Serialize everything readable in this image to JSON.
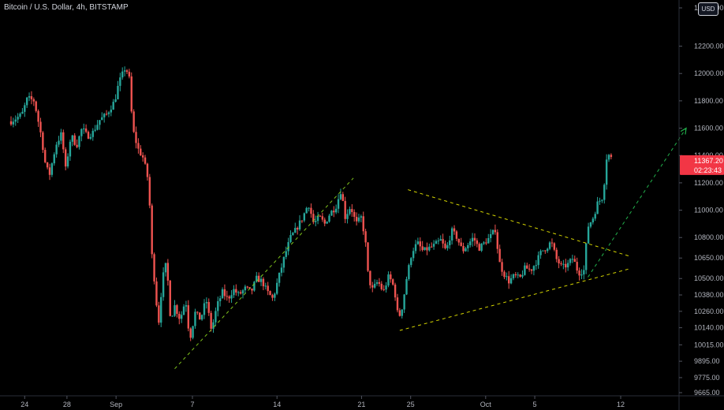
{
  "header": {
    "title": "Bitcoin / U.S. Dollar, 4h, BITSTAMP"
  },
  "currency_button": {
    "label": "USD"
  },
  "price_badge": {
    "price": "11367.20",
    "countdown": "02:23:43",
    "color": "#f23645"
  },
  "colors": {
    "up": "#26a69a",
    "down": "#ef5350",
    "background": "#000000",
    "trendline": "#d4d400",
    "projection": "#22b14c",
    "axis_text": "#b2b5be"
  },
  "chart_data": {
    "type": "candlestick",
    "title": "Bitcoin / U.S. Dollar, 4h, BITSTAMP",
    "ylim": [
      9620,
      12480
    ],
    "x_range": [
      0,
      53
    ],
    "x_ticks": [
      {
        "x": 1.0,
        "label": "24"
      },
      {
        "x": 4.1,
        "label": "28"
      },
      {
        "x": 7.7,
        "label": "Sep"
      },
      {
        "x": 13.3,
        "label": "7"
      },
      {
        "x": 19.5,
        "label": "14"
      },
      {
        "x": 25.7,
        "label": "21"
      },
      {
        "x": 29.3,
        "label": "25"
      },
      {
        "x": 34.8,
        "label": "Oct"
      },
      {
        "x": 38.4,
        "label": "5"
      },
      {
        "x": 44.7,
        "label": "12"
      }
    ],
    "y_ticks": [
      {
        "value": 12480.0,
        "label": "12480.00"
      },
      {
        "value": 12200.0,
        "label": "12200.00"
      },
      {
        "value": 12000.0,
        "label": "12000.00"
      },
      {
        "value": 11800.0,
        "label": "11800.00"
      },
      {
        "value": 11600.0,
        "label": "11600.00"
      },
      {
        "value": 11400.0,
        "label": "11400.00"
      },
      {
        "value": 11200.0,
        "label": "11200.00"
      },
      {
        "value": 11000.0,
        "label": "11000.00"
      },
      {
        "value": 10800.0,
        "label": "10800.00"
      },
      {
        "value": 10650.0,
        "label": "10650.00"
      },
      {
        "value": 10500.0,
        "label": "10500.00"
      },
      {
        "value": 10380.0,
        "label": "10380.00"
      },
      {
        "value": 10260.0,
        "label": "10260.00"
      },
      {
        "value": 10140.0,
        "label": "10140.00"
      },
      {
        "value": 10015.0,
        "label": "10015.00"
      },
      {
        "value": 9895.0,
        "label": "9895.00"
      },
      {
        "value": 9775.0,
        "label": "9775.00"
      },
      {
        "value": 9665.0,
        "label": "9665.00"
      }
    ],
    "anchors": [
      [
        0.0,
        11650
      ],
      [
        0.8,
        11700
      ],
      [
        1.2,
        11820
      ],
      [
        1.7,
        11800
      ],
      [
        2.2,
        11550
      ],
      [
        2.5,
        11350
      ],
      [
        2.8,
        11250
      ],
      [
        3.3,
        11480
      ],
      [
        3.7,
        11560
      ],
      [
        4.0,
        11300
      ],
      [
        4.4,
        11550
      ],
      [
        4.8,
        11470
      ],
      [
        5.2,
        11600
      ],
      [
        5.6,
        11540
      ],
      [
        6.0,
        11570
      ],
      [
        6.5,
        11660
      ],
      [
        7.0,
        11700
      ],
      [
        7.6,
        11800
      ],
      [
        7.9,
        11930
      ],
      [
        8.4,
        12050
      ],
      [
        8.7,
        11950
      ],
      [
        8.9,
        11600
      ],
      [
        9.3,
        11450
      ],
      [
        9.7,
        11380
      ],
      [
        10.1,
        11200
      ],
      [
        10.3,
        10700
      ],
      [
        10.6,
        10400
      ],
      [
        10.8,
        10150
      ],
      [
        11.1,
        10500
      ],
      [
        11.4,
        10620
      ],
      [
        11.7,
        10200
      ],
      [
        12.0,
        10300
      ],
      [
        12.4,
        10200
      ],
      [
        12.8,
        10350
      ],
      [
        13.1,
        10050
      ],
      [
        13.5,
        10250
      ],
      [
        13.9,
        10200
      ],
      [
        14.3,
        10350
      ],
      [
        14.7,
        10120
      ],
      [
        15.1,
        10300
      ],
      [
        15.5,
        10400
      ],
      [
        15.9,
        10350
      ],
      [
        16.3,
        10420
      ],
      [
        16.7,
        10380
      ],
      [
        17.2,
        10430
      ],
      [
        17.6,
        10400
      ],
      [
        18.0,
        10500
      ],
      [
        18.4,
        10480
      ],
      [
        18.8,
        10400
      ],
      [
        19.2,
        10350
      ],
      [
        19.6,
        10500
      ],
      [
        20.1,
        10680
      ],
      [
        20.5,
        10800
      ],
      [
        20.9,
        10860
      ],
      [
        21.4,
        10950
      ],
      [
        21.8,
        11050
      ],
      [
        22.2,
        10900
      ],
      [
        22.6,
        10950
      ],
      [
        23.0,
        10900
      ],
      [
        23.4,
        10980
      ],
      [
        23.8,
        11020
      ],
      [
        24.2,
        11150
      ],
      [
        24.5,
        10950
      ],
      [
        24.9,
        11030
      ],
      [
        25.3,
        10900
      ],
      [
        25.7,
        10950
      ],
      [
        26.0,
        10750
      ],
      [
        26.2,
        10500
      ],
      [
        26.5,
        10420
      ],
      [
        26.9,
        10480
      ],
      [
        27.3,
        10400
      ],
      [
        27.7,
        10520
      ],
      [
        28.1,
        10430
      ],
      [
        28.4,
        10200
      ],
      [
        28.7,
        10300
      ],
      [
        29.0,
        10500
      ],
      [
        29.4,
        10700
      ],
      [
        29.8,
        10760
      ],
      [
        30.2,
        10700
      ],
      [
        30.6,
        10720
      ],
      [
        31.0,
        10740
      ],
      [
        31.5,
        10780
      ],
      [
        31.9,
        10700
      ],
      [
        32.3,
        10850
      ],
      [
        32.7,
        10800
      ],
      [
        33.1,
        10700
      ],
      [
        33.5,
        10750
      ],
      [
        33.9,
        10800
      ],
      [
        34.3,
        10720
      ],
      [
        34.7,
        10760
      ],
      [
        35.1,
        10800
      ],
      [
        35.5,
        10860
      ],
      [
        35.8,
        10620
      ],
      [
        36.1,
        10540
      ],
      [
        36.5,
        10480
      ],
      [
        36.9,
        10520
      ],
      [
        37.3,
        10500
      ],
      [
        37.7,
        10580
      ],
      [
        38.1,
        10560
      ],
      [
        38.5,
        10620
      ],
      [
        38.9,
        10700
      ],
      [
        39.3,
        10730
      ],
      [
        39.6,
        10770
      ],
      [
        40.0,
        10640
      ],
      [
        40.4,
        10580
      ],
      [
        40.8,
        10600
      ],
      [
        41.2,
        10650
      ],
      [
        41.6,
        10540
      ],
      [
        42.0,
        10560
      ],
      [
        42.3,
        10880
      ],
      [
        42.7,
        10950
      ],
      [
        43.0,
        11050
      ],
      [
        43.4,
        11100
      ],
      [
        43.7,
        11420
      ],
      [
        44.1,
        11367
      ]
    ],
    "trendlines": [
      {
        "name": "ascending-support-sep",
        "color": "yellow-green",
        "style": "dashed",
        "from": [
          12.0,
          9840
        ],
        "to": [
          25.1,
          11235
        ]
      },
      {
        "name": "triangle-upper",
        "color": "yellow",
        "style": "dashed",
        "from": [
          29.1,
          11150
        ],
        "to": [
          45.3,
          10665
        ]
      },
      {
        "name": "triangle-lower",
        "color": "yellow",
        "style": "dashed",
        "from": [
          28.5,
          10120
        ],
        "to": [
          45.3,
          10570
        ]
      },
      {
        "name": "projection-arrow",
        "color": "green",
        "style": "dashed-arrow",
        "from": [
          42.3,
          10510
        ],
        "to": [
          49.5,
          11600
        ]
      }
    ],
    "last_price": 11367.2
  }
}
